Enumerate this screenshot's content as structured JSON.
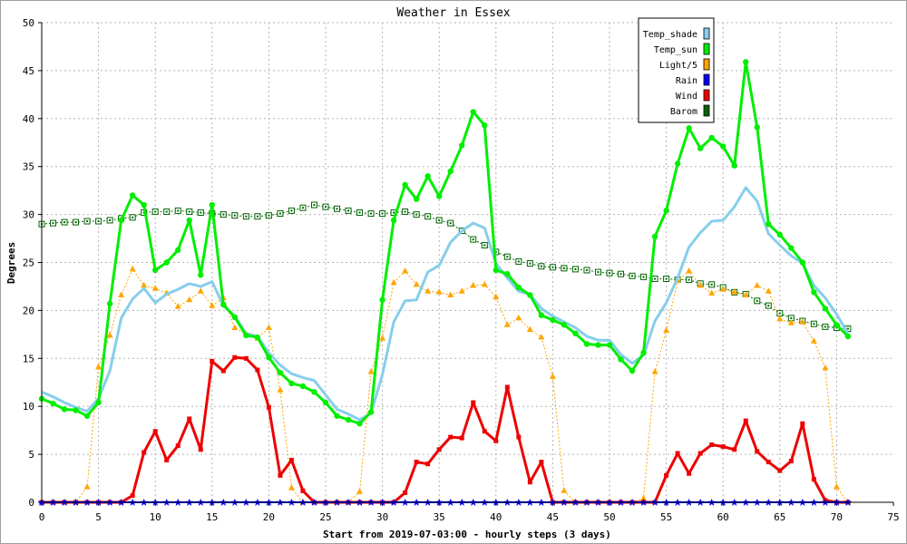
{
  "chart_data": {
    "type": "line",
    "title": "Weather in Essex",
    "xlabel": "Start from 2019-07-03:00 - hourly steps (3 days)",
    "ylabel": "Degrees",
    "xlim": [
      0,
      75
    ],
    "ylim": [
      0,
      50
    ],
    "x_ticks": [
      0,
      5,
      10,
      15,
      20,
      25,
      30,
      35,
      40,
      45,
      50,
      55,
      60,
      65,
      70,
      75
    ],
    "y_ticks": [
      0,
      5,
      10,
      15,
      20,
      25,
      30,
      35,
      40,
      45,
      50
    ],
    "grid": true,
    "legend_position": "top-right",
    "series": [
      {
        "name": "Temp_shade",
        "color": "#87ceeb",
        "values": [
          11.5,
          11,
          10.4,
          9.9,
          9.5,
          10.8,
          13.7,
          19.2,
          21.2,
          22.3,
          20.8,
          21.7,
          22.2,
          22.8,
          22.5,
          23,
          20.5,
          19.4,
          17.6,
          17.3,
          15.6,
          14.3,
          13.4,
          13,
          12.7,
          11.2,
          9.7,
          9.2,
          8.6,
          9.3,
          13.3,
          18.8,
          21,
          21.1,
          24,
          24.7,
          27.1,
          28.3,
          29.1,
          28.6,
          24.9,
          23.4,
          22,
          21.7,
          20.2,
          19.4,
          18.8,
          18.2,
          17.3,
          16.9,
          16.9,
          15.4,
          14.5,
          15.3,
          18.9,
          20.8,
          23.4,
          26.6,
          28.1,
          29.3,
          29.4,
          30.8,
          32.8,
          31.4,
          28,
          26.8,
          25.7,
          24.9,
          22.6,
          21.3,
          19.6,
          17.6
        ]
      },
      {
        "name": "Temp_sun",
        "color": "#00ee00",
        "values": [
          10.8,
          10.3,
          9.7,
          9.6,
          9,
          10.4,
          20.7,
          29.4,
          32,
          31,
          24.2,
          25,
          26.3,
          29.4,
          23.7,
          31,
          20.6,
          19.3,
          17.4,
          17.2,
          15.1,
          13.5,
          12.4,
          12.1,
          11.5,
          10.4,
          9,
          8.6,
          8.2,
          9.4,
          21.1,
          29.4,
          33.1,
          31.6,
          34,
          31.9,
          34.5,
          37.2,
          40.7,
          39.3,
          24.2,
          23.8,
          22.4,
          21.6,
          19.5,
          19,
          18.5,
          17.6,
          16.5,
          16.4,
          16.4,
          14.9,
          13.7,
          15.6,
          27.7,
          30.4,
          35.3,
          39,
          36.9,
          38,
          37.1,
          35.1,
          45.9,
          39.1,
          29,
          27.9,
          26.5,
          25,
          21.9,
          20.2,
          18.5,
          17.3
        ]
      },
      {
        "name": "Light/5",
        "color": "#ffa500",
        "values": [
          0,
          0,
          0,
          0,
          1.6,
          14.1,
          17.4,
          21.6,
          24.3,
          22.6,
          22.3,
          21.8,
          20.4,
          21.1,
          22,
          20.5,
          21.3,
          18.2,
          17.5,
          17.1,
          18.2,
          11.7,
          1.5,
          0,
          0,
          0,
          0,
          0,
          1.1,
          13.6,
          17.1,
          22.9,
          24.1,
          22.7,
          22,
          21.9,
          21.6,
          22,
          22.6,
          22.7,
          21.4,
          18.5,
          19.2,
          18,
          17.2,
          13.1,
          1.2,
          0,
          0,
          0,
          0,
          0,
          0,
          0.4,
          13.6,
          17.9,
          23.1,
          24.1,
          22.6,
          21.8,
          22.2,
          21.9,
          21.6,
          22.6,
          22,
          19.1,
          18.7,
          18.8,
          16.8,
          14,
          1.6,
          0
        ]
      },
      {
        "name": "Rain",
        "color": "#0000ff",
        "values": [
          0,
          0,
          0,
          0,
          0,
          0,
          0,
          0,
          0,
          0,
          0,
          0,
          0,
          0,
          0,
          0,
          0,
          0,
          0,
          0,
          0,
          0,
          0,
          0,
          0,
          0,
          0,
          0,
          0,
          0,
          0,
          0,
          0,
          0,
          0,
          0,
          0,
          0,
          0,
          0,
          0,
          0,
          0,
          0,
          0,
          0,
          0,
          0,
          0,
          0,
          0,
          0,
          0,
          0,
          0,
          0,
          0,
          0,
          0,
          0,
          0,
          0,
          0,
          0,
          0,
          0,
          0,
          0,
          0,
          0,
          0,
          0
        ]
      },
      {
        "name": "Wind",
        "color": "#ee0000",
        "values": [
          0,
          0,
          0,
          0,
          0,
          0,
          0,
          0,
          0.7,
          5.2,
          7.4,
          4.4,
          5.9,
          8.7,
          5.5,
          14.7,
          13.7,
          15.1,
          15,
          13.8,
          9.9,
          2.8,
          4.4,
          1.2,
          0,
          0,
          0,
          0,
          0,
          0,
          0,
          0,
          1,
          4.2,
          4,
          5.5,
          6.8,
          6.7,
          10.4,
          7.4,
          6.4,
          12,
          6.8,
          2.1,
          4.2,
          0,
          0,
          0,
          0,
          0,
          0,
          0,
          0,
          0,
          0,
          2.8,
          5.1,
          3,
          5.1,
          6,
          5.8,
          5.5,
          8.5,
          5.3,
          4.2,
          3.3,
          4.3,
          8.2,
          2.4,
          0.2,
          0,
          0
        ]
      },
      {
        "name": "Barom",
        "color": "#006400",
        "values": [
          29,
          29.1,
          29.2,
          29.2,
          29.3,
          29.3,
          29.4,
          29.6,
          29.7,
          30.2,
          30.3,
          30.3,
          30.4,
          30.3,
          30.2,
          30.1,
          30,
          29.9,
          29.8,
          29.8,
          29.9,
          30.1,
          30.4,
          30.7,
          31,
          30.8,
          30.6,
          30.4,
          30.2,
          30.1,
          30.1,
          30.2,
          30.3,
          30,
          29.8,
          29.4,
          29.1,
          28.3,
          27.4,
          26.8,
          26.1,
          25.6,
          25.1,
          24.9,
          24.6,
          24.5,
          24.4,
          24.3,
          24.2,
          24,
          23.9,
          23.8,
          23.6,
          23.5,
          23.3,
          23.3,
          23.2,
          23.2,
          22.8,
          22.7,
          22.4,
          21.9,
          21.7,
          21,
          20.5,
          19.7,
          19.2,
          18.9,
          18.6,
          18.3,
          18.2,
          18.1
        ]
      }
    ]
  }
}
